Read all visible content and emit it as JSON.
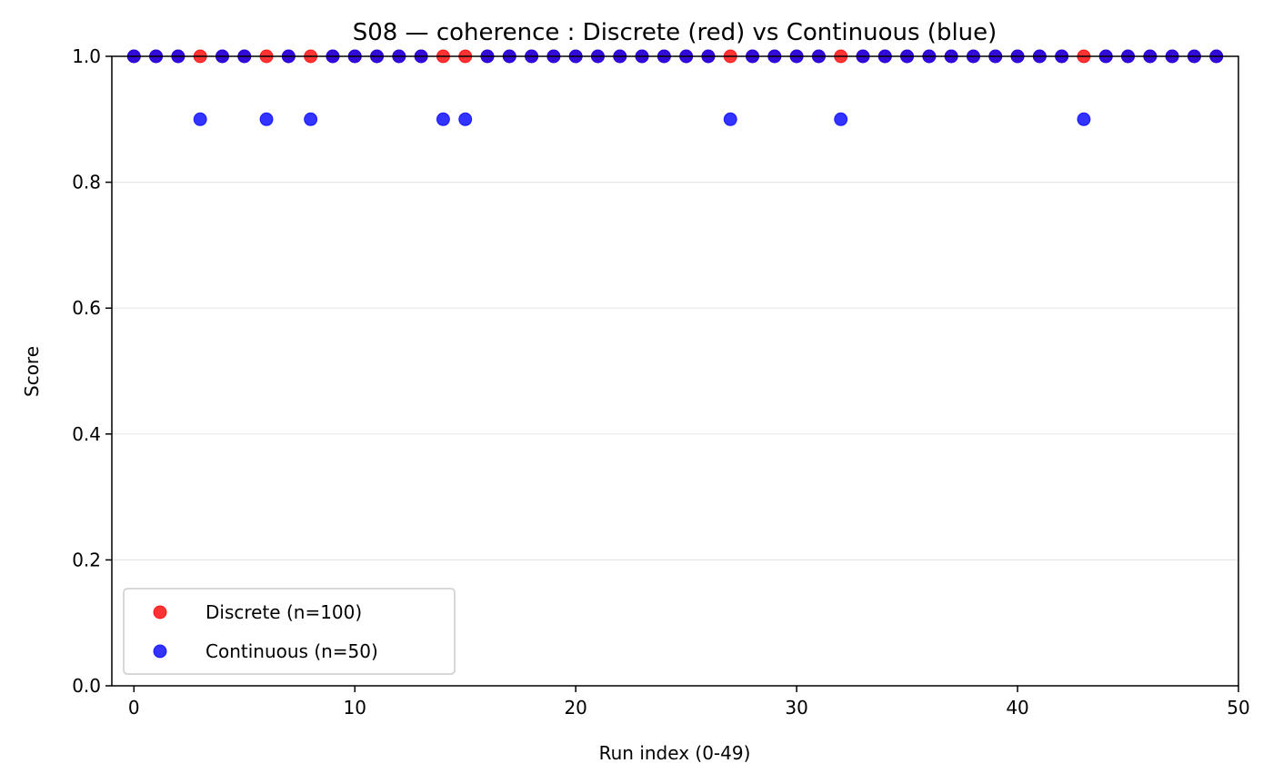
{
  "chart_data": {
    "type": "scatter",
    "title": "S08 — coherence : Discrete (red) vs Continuous (blue)",
    "xlabel": "Run index (0-49)",
    "ylabel": "Score",
    "xlim": [
      -1,
      50
    ],
    "ylim": [
      0.0,
      1.0
    ],
    "x_ticks": [
      0,
      10,
      20,
      30,
      40,
      50
    ],
    "y_ticks": [
      0.0,
      0.2,
      0.4,
      0.6,
      0.8,
      1.0
    ],
    "x_tick_labels": [
      "0",
      "10",
      "20",
      "30",
      "40",
      "50"
    ],
    "y_tick_labels": [
      "0.0",
      "0.2",
      "0.4",
      "0.6",
      "0.8",
      "1.0"
    ],
    "grid": "horizontal",
    "legend_position": "lower-left",
    "series": [
      {
        "name": "Discrete (n=100)",
        "color": "#ff0000",
        "x": [
          0,
          1,
          2,
          3,
          4,
          5,
          6,
          7,
          8,
          9,
          10,
          11,
          12,
          13,
          14,
          15,
          16,
          17,
          18,
          19,
          20,
          21,
          22,
          23,
          24,
          25,
          26,
          27,
          28,
          29,
          30,
          31,
          32,
          33,
          34,
          35,
          36,
          37,
          38,
          39,
          40,
          41,
          42,
          43,
          44,
          45,
          46,
          47,
          48,
          49
        ],
        "y": [
          1,
          1,
          1,
          1,
          1,
          1,
          1,
          1,
          1,
          1,
          1,
          1,
          1,
          1,
          1,
          1,
          1,
          1,
          1,
          1,
          1,
          1,
          1,
          1,
          1,
          1,
          1,
          1,
          1,
          1,
          1,
          1,
          1,
          1,
          1,
          1,
          1,
          1,
          1,
          1,
          1,
          1,
          1,
          1,
          1,
          1,
          1,
          1,
          1,
          1
        ]
      },
      {
        "name": "Continuous (n=50)",
        "color": "#0000ff",
        "x": [
          0,
          1,
          2,
          3,
          4,
          5,
          6,
          7,
          8,
          9,
          10,
          11,
          12,
          13,
          14,
          15,
          16,
          17,
          18,
          19,
          20,
          21,
          22,
          23,
          24,
          25,
          26,
          27,
          28,
          29,
          30,
          31,
          32,
          33,
          34,
          35,
          36,
          37,
          38,
          39,
          40,
          41,
          42,
          43,
          44,
          45,
          46,
          47,
          48,
          49
        ],
        "y": [
          1,
          1,
          1,
          0.9,
          1,
          1,
          0.9,
          1,
          0.9,
          1,
          1,
          1,
          1,
          1,
          0.9,
          0.9,
          1,
          1,
          1,
          1,
          1,
          1,
          1,
          1,
          1,
          1,
          1,
          0.9,
          1,
          1,
          1,
          1,
          0.9,
          1,
          1,
          1,
          1,
          1,
          1,
          1,
          1,
          1,
          1,
          0.9,
          1,
          1,
          1,
          1,
          1,
          1
        ]
      }
    ]
  }
}
